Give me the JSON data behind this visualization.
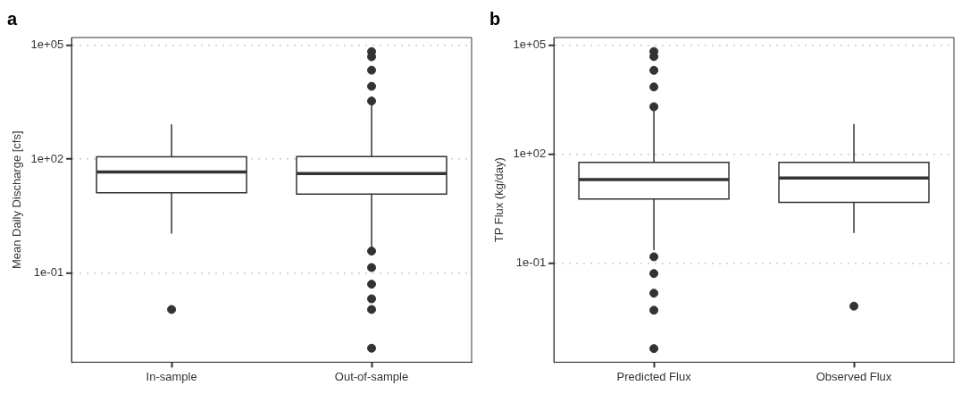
{
  "chart_data": [
    {
      "type": "box",
      "title": "a",
      "ylabel": "Mean Daily Discharge [cfs]",
      "categories": [
        "In-sample",
        "Out-of-sample"
      ],
      "color": "#333333",
      "log": true,
      "grid": "y",
      "ylim": [
        0.00045,
        160000
      ],
      "yticks": [
        {
          "value": 0.1,
          "label": "1e-01"
        },
        {
          "value": 100,
          "label": "1e+02"
        },
        {
          "value": 100000,
          "label": "1e+05"
        }
      ],
      "boxes": [
        {
          "low": 1.1,
          "q1": 13,
          "median": 46,
          "q3": 115,
          "high": 820,
          "outliers": [
            0.011
          ]
        },
        {
          "low": 0.47,
          "q1": 12,
          "median": 42,
          "q3": 117,
          "high": 2750,
          "outliers": [
            68000,
            50000,
            22000,
            8300,
            3400,
            0.38,
            0.14,
            0.051,
            0.021,
            0.011,
            0.00105
          ]
        }
      ]
    },
    {
      "type": "box",
      "title": "b",
      "ylabel": "TP Flux (kg/day)",
      "categories": [
        "Predicted Flux",
        "Observed Flux"
      ],
      "color": "#333333",
      "log": true,
      "grid": "y",
      "ylim": [
        0.00019,
        160000
      ],
      "yticks": [
        {
          "value": 0.1,
          "label": "1e-01"
        },
        {
          "value": 100,
          "label": "1e+02"
        },
        {
          "value": 100000,
          "label": "1e+05"
        }
      ],
      "boxes": [
        {
          "low": 0.23,
          "q1": 5.8,
          "median": 20,
          "q3": 59,
          "high": 1620,
          "outliers": [
            66000,
            48000,
            20000,
            7000,
            2000,
            0.15,
            0.052,
            0.015,
            0.0051,
            0.00045
          ]
        },
        {
          "low": 0.68,
          "q1": 4.7,
          "median": 22,
          "q3": 59,
          "high": 670,
          "outliers": [
            0.0066
          ]
        }
      ]
    }
  ]
}
